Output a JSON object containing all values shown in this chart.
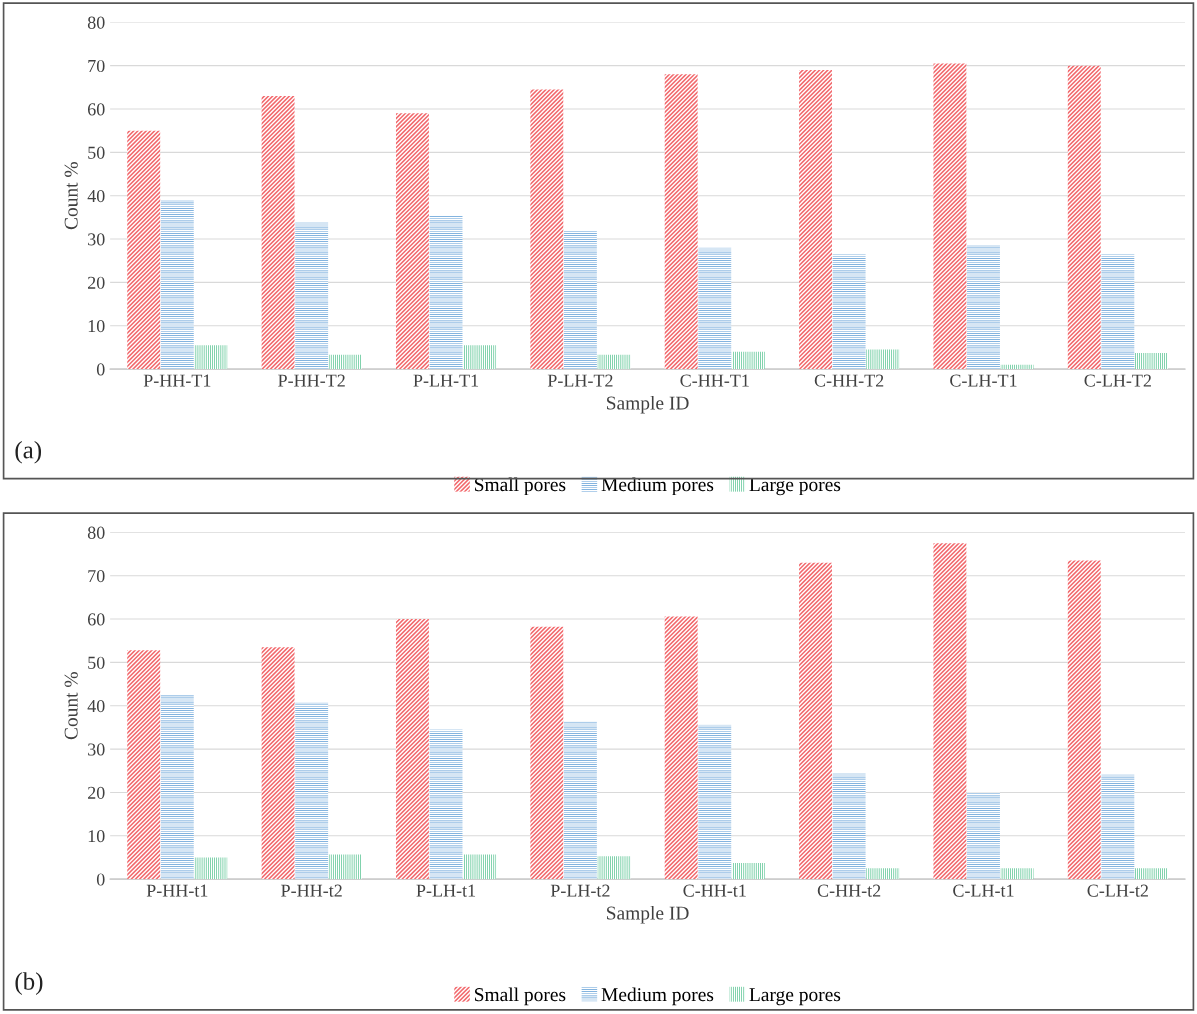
{
  "chart_data": [
    {
      "type": "bar",
      "xlabel": "Sample ID",
      "ylabel": "Count %",
      "annotations": [
        "(a)"
      ],
      "categories": [
        "P-HH-T1",
        "P-HH-T2",
        "P-LH-T1",
        "P-LH-T2",
        "C-HH-T1",
        "C-HH-T2",
        "C-LH-T1",
        "C-LH-T2"
      ],
      "series": [
        {
          "name": "Small pores",
          "color": "#f2686c",
          "values": [
            55,
            63,
            59,
            64.5,
            68,
            69,
            70.5,
            70
          ]
        },
        {
          "name": "Medium pores",
          "color": "#5b9bd5",
          "values": [
            39,
            33.8,
            35.5,
            32,
            28,
            26.5,
            28.5,
            26.5
          ]
        },
        {
          "name": "Large pores",
          "color": "#4cc08a",
          "values": [
            5.5,
            3.3,
            5.5,
            3.3,
            4,
            4.5,
            1,
            3.7
          ]
        }
      ],
      "ylim": [
        0,
        80
      ],
      "yticks": [
        0,
        10,
        20,
        30,
        40,
        50,
        60,
        70,
        80
      ],
      "grid": "y",
      "legend": "bottom"
    },
    {
      "type": "bar",
      "xlabel": "Sample ID",
      "ylabel": "Count %",
      "annotations": [
        "(b)"
      ],
      "categories": [
        "P-HH-t1",
        "P-HH-t2",
        "P-LH-t1",
        "P-LH-t2",
        "C-HH-t1",
        "C-HH-t2",
        "C-LH-t1",
        "C-LH-t2"
      ],
      "series": [
        {
          "name": "Small pores",
          "color": "#f2686c",
          "values": [
            52.8,
            53.5,
            60,
            58.2,
            60.6,
            73,
            77.5,
            73.5
          ]
        },
        {
          "name": "Medium pores",
          "color": "#5b9bd5",
          "values": [
            42.5,
            40.7,
            34.5,
            36.3,
            35.6,
            24.5,
            20,
            24.2
          ]
        },
        {
          "name": "Large pores",
          "color": "#4cc08a",
          "values": [
            5,
            5.7,
            5.7,
            5.3,
            3.7,
            2.5,
            2.5,
            2.5
          ]
        }
      ],
      "ylim": [
        0,
        80
      ],
      "yticks": [
        0,
        10,
        20,
        30,
        40,
        50,
        60,
        70,
        80
      ],
      "grid": "y",
      "legend": "bottom"
    }
  ]
}
